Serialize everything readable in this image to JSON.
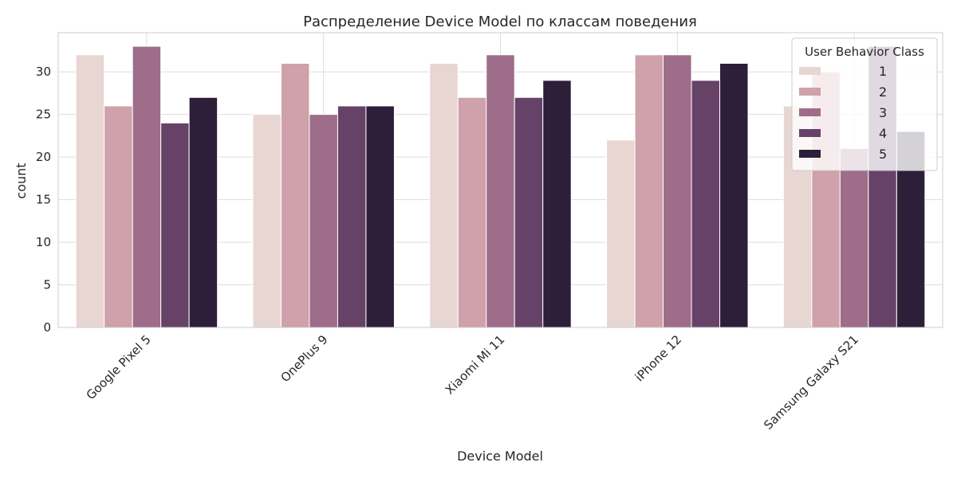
{
  "chart_data": {
    "type": "bar",
    "title": "Распределение Device Model по классам поведения",
    "xlabel": "Device Model",
    "ylabel": "count",
    "categories": [
      "Google Pixel 5",
      "OnePlus 9",
      "Xiaomi Mi 11",
      "iPhone 12",
      "Samsung Galaxy S21"
    ],
    "ylim": [
      0,
      34.6
    ],
    "yticks": [
      0,
      5,
      10,
      15,
      20,
      25,
      30
    ],
    "grid": true,
    "legend": {
      "title": "User Behavior Class",
      "position": "top-right"
    },
    "series": [
      {
        "name": "1",
        "color": "#e8d6d3",
        "values": [
          32,
          25,
          31,
          22,
          26
        ]
      },
      {
        "name": "2",
        "color": "#cfa1aa",
        "values": [
          26,
          31,
          27,
          32,
          30
        ]
      },
      {
        "name": "3",
        "color": "#9e6d89",
        "values": [
          33,
          25,
          32,
          32,
          21
        ]
      },
      {
        "name": "4",
        "color": "#664268",
        "values": [
          24,
          26,
          27,
          29,
          33
        ]
      },
      {
        "name": "5",
        "color": "#2d1f3a",
        "values": [
          27,
          26,
          29,
          31,
          23
        ]
      }
    ]
  }
}
